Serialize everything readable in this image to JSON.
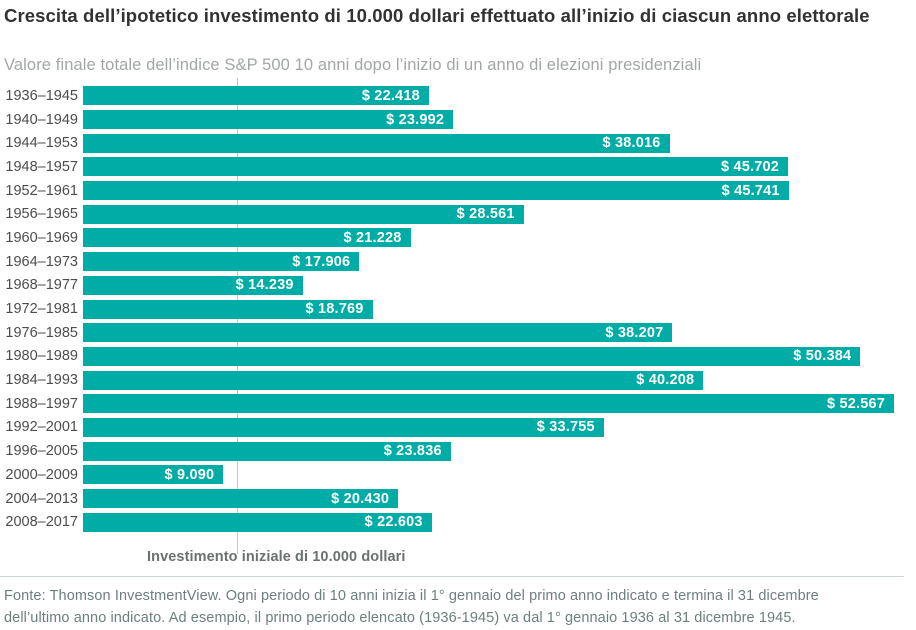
{
  "title": "Crescita dell’ipotetico investimento di 10.000 dollari effettuato all’inizio di ciascun anno elettorale",
  "subtitle": "Valore finale totale dell’indice S&P 500 10 anni dopo l’inizio di un anno di elezioni presidenziali",
  "annotation": "Investimento iniziale di 10.000 dollari",
  "footer": {
    "line1": "Fonte: Thomson InvestmentView. Ogni periodo di 10 anni inizia il 1° gennaio del primo anno indicato e termina il 31 dicembre",
    "line2": "dell’ultimo anno indicato. Ad esempio, il primo periodo elencato (1936-1945) va dal 1° gennaio 1936 al 31 dicembre 1945."
  },
  "colors": {
    "bar": "#00aca6",
    "title_text": "#323232",
    "subtitle_text": "#a2a6a6",
    "category_text": "#4d4d4d",
    "value_text": "#ffffff",
    "reference_line": "#c3c6c6",
    "annotation_text": "#6a7170",
    "footer_text": "#6e7e7d"
  },
  "chart_data": {
    "type": "bar",
    "orientation": "horizontal",
    "title": "Crescita dell’ipotetico investimento di 10.000 dollari effettuato all’inizio di ciascun anno elettorale",
    "subtitle": "Valore finale totale dell’indice S&P 500 10 anni dopo l’inizio di un anno di elezioni presidenziali",
    "categories": [
      "1936–1945",
      "1940–1949",
      "1944–1953",
      "1948–1957",
      "1952–1961",
      "1956–1965",
      "1960–1969",
      "1964–1973",
      "1968–1977",
      "1972–1981",
      "1976–1985",
      "1980–1989",
      "1984–1993",
      "1988–1997",
      "1992–2001",
      "1996–2005",
      "2000–2009",
      "2004–2013",
      "2008–2017"
    ],
    "values": [
      22418,
      23992,
      38016,
      45702,
      45741,
      28561,
      21228,
      17906,
      14239,
      18769,
      38207,
      50384,
      40208,
      52567,
      33755,
      23836,
      9090,
      20430,
      22603
    ],
    "value_labels": [
      "$ 22.418",
      "$ 23.992",
      "$ 38.016",
      "$ 45.702",
      "$ 45.741",
      "$ 28.561",
      "$ 21.228",
      "$ 17.906",
      "$ 14.239",
      "$ 18.769",
      "$ 38.207",
      "$ 50.384",
      "$ 40.208",
      "$ 52.567",
      "$ 33.755",
      "$ 23.836",
      "$ 9.090",
      "$ 20.430",
      "$ 22.603"
    ],
    "xlim": [
      0,
      52567
    ],
    "grid": false,
    "legend": false,
    "reference_line": {
      "value": 10000,
      "label": "Investimento iniziale di 10.000 dollari"
    }
  }
}
